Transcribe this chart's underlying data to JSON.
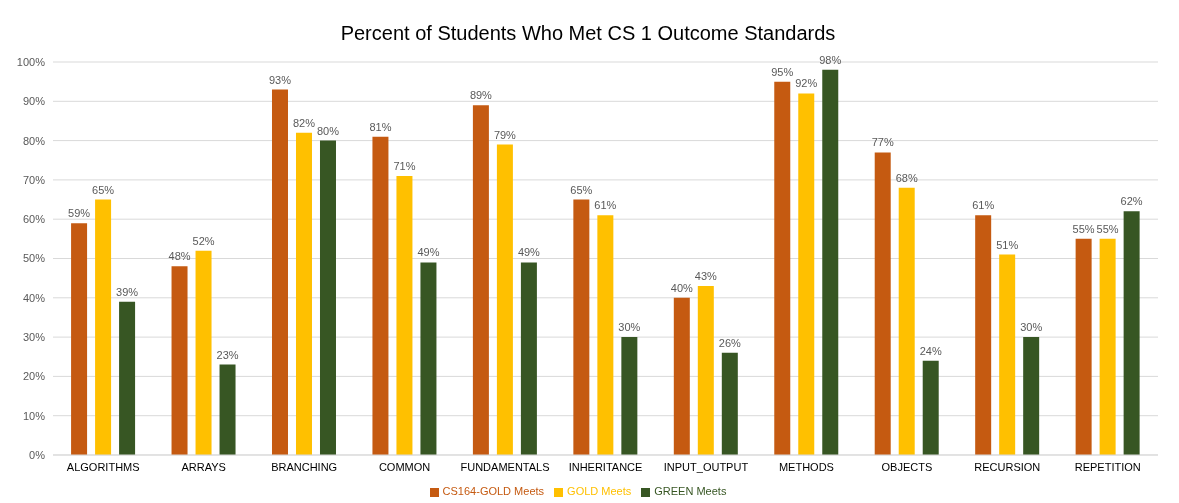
{
  "chart_data": {
    "type": "bar",
    "title": "Percent of Students Who Met CS 1 Outcome Standards",
    "categories": [
      "ALGORITHMS",
      "ARRAYS",
      "BRANCHING",
      "COMMON",
      "FUNDAMENTALS",
      "INHERITANCE",
      "INPUT_OUTPUT",
      "METHODS",
      "OBJECTS",
      "RECURSION",
      "REPETITION"
    ],
    "series": [
      {
        "name": "CS164-GOLD Meets",
        "color": "#c55a11",
        "values": [
          59,
          48,
          93,
          81,
          89,
          65,
          40,
          95,
          77,
          61,
          55
        ],
        "value_labels": [
          "59%",
          "48%",
          "93%",
          "81%",
          "89%",
          "65%",
          "40%",
          "95%",
          "77%",
          "61%",
          "55%"
        ]
      },
      {
        "name": "GOLD Meets",
        "color": "#ffc000",
        "values": [
          65,
          52,
          82,
          71,
          79,
          61,
          43,
          92,
          68,
          51,
          55
        ],
        "value_labels": [
          "65%",
          "52%",
          "82%",
          "71%",
          "79%",
          "61%",
          "43%",
          "92%",
          "68%",
          "51%",
          "55%"
        ]
      },
      {
        "name": "GREEN Meets",
        "color": "#375623",
        "values": [
          39,
          23,
          80,
          49,
          49,
          30,
          26,
          98,
          24,
          30,
          62
        ],
        "value_labels": [
          "39%",
          "23%",
          "80%",
          "49%",
          "49%",
          "30%",
          "26%",
          "98%",
          "24%",
          "30%",
          "62%"
        ]
      }
    ],
    "ylim": [
      0,
      100
    ],
    "yticks": [
      {
        "value": 0,
        "label": "0%"
      },
      {
        "value": 10,
        "label": "10%"
      },
      {
        "value": 20,
        "label": "20%"
      },
      {
        "value": 30,
        "label": "30%"
      },
      {
        "value": 40,
        "label": "40%"
      },
      {
        "value": 50,
        "label": "50%"
      },
      {
        "value": 60,
        "label": "60%"
      },
      {
        "value": 70,
        "label": "70%"
      },
      {
        "value": 80,
        "label": "80%"
      },
      {
        "value": 90,
        "label": "90%"
      },
      {
        "value": 100,
        "label": "100%"
      }
    ],
    "grid": "y",
    "legend": "bottom"
  }
}
